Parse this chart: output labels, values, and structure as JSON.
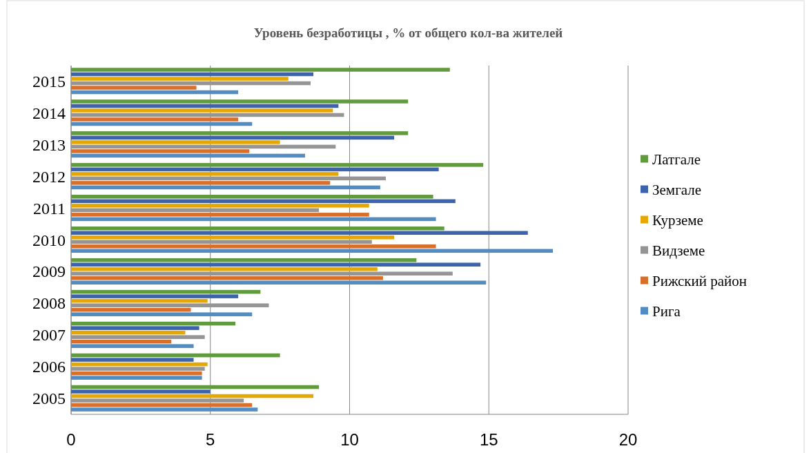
{
  "chart_data": {
    "type": "bar",
    "orientation": "horizontal",
    "title": "Уровень безработицы , % от общего кол-ва жителей",
    "categories": [
      "2015",
      "2014",
      "2013",
      "2012",
      "2011",
      "2010",
      "2009",
      "2008",
      "2007",
      "2006",
      "2005"
    ],
    "series": [
      {
        "name": "Латгале",
        "color": "#629a3f",
        "values": [
          13.6,
          12.1,
          12.1,
          14.8,
          13.0,
          13.4,
          12.4,
          6.8,
          5.9,
          7.5,
          8.9
        ]
      },
      {
        "name": "Земгале",
        "color": "#3c64ad",
        "values": [
          8.7,
          9.6,
          11.6,
          13.2,
          13.8,
          16.4,
          14.7,
          6.0,
          4.6,
          4.4,
          5.0
        ]
      },
      {
        "name": "Курземе",
        "color": "#e6a800",
        "values": [
          7.8,
          9.4,
          7.5,
          9.6,
          10.7,
          11.6,
          11.0,
          4.9,
          4.1,
          4.9,
          8.7
        ]
      },
      {
        "name": "Видземе",
        "color": "#959595",
        "values": [
          8.6,
          9.8,
          9.5,
          11.3,
          8.9,
          10.8,
          13.7,
          7.1,
          4.8,
          4.8,
          6.2
        ]
      },
      {
        "name": "Рижский район",
        "color": "#d86f2b",
        "values": [
          4.5,
          6.0,
          6.4,
          9.3,
          10.7,
          13.1,
          11.2,
          4.3,
          3.6,
          4.7,
          6.5
        ]
      },
      {
        "name": "Рига",
        "color": "#518cc2",
        "values": [
          6.0,
          6.5,
          8.4,
          11.1,
          13.1,
          17.3,
          14.9,
          6.5,
          4.4,
          4.7,
          6.7
        ]
      }
    ],
    "xlim": [
      0,
      20
    ],
    "xticks": [
      0,
      5,
      10,
      15,
      20
    ],
    "grid": "x",
    "legend": "right"
  }
}
